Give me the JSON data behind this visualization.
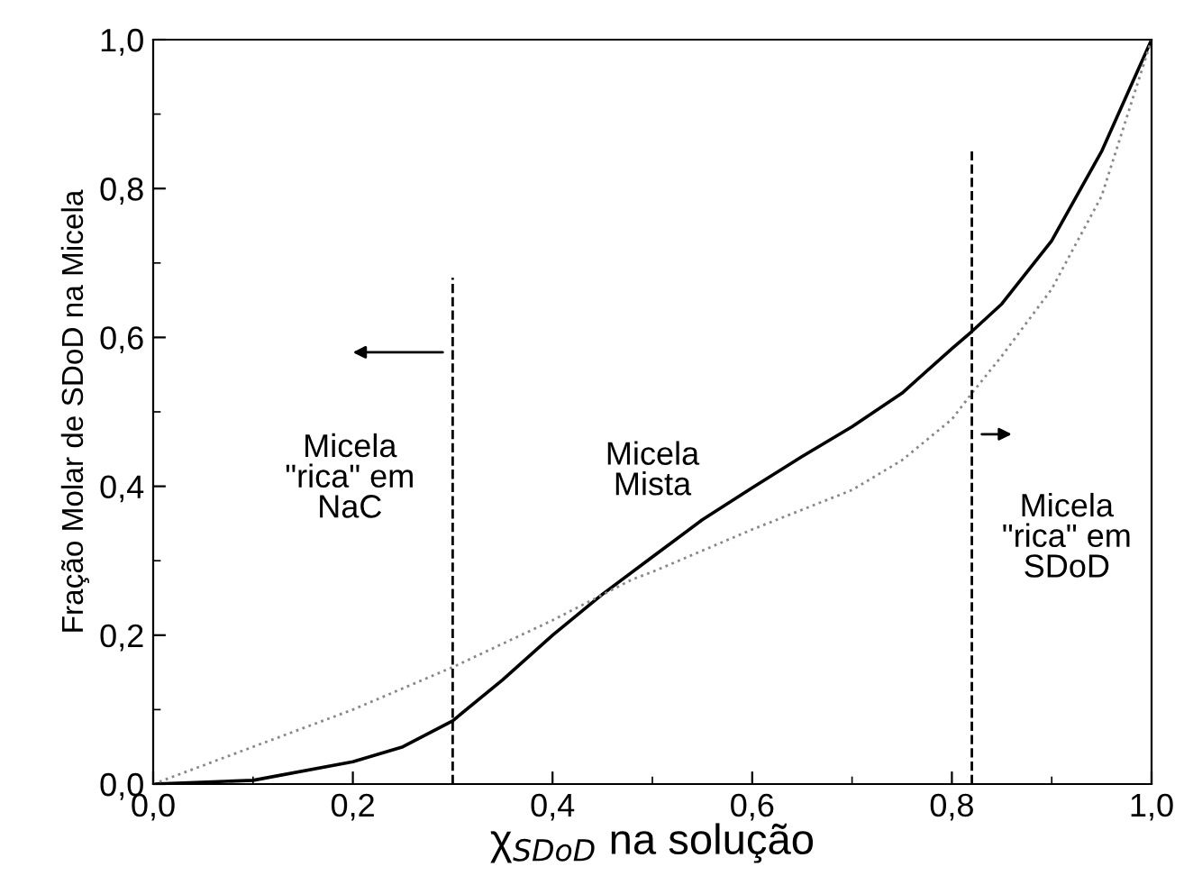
{
  "chart_data": {
    "type": "line",
    "xlabel": "χ$_{SDoD}$ na solução",
    "ylabel": "Fração Molar de SDoD na Micela",
    "xlim": [
      0,
      1
    ],
    "ylim": [
      0,
      1
    ],
    "xticks": [
      {
        "value": 0,
        "label": "0,0"
      },
      {
        "value": 0.2,
        "label": "0,2"
      },
      {
        "value": 0.4,
        "label": "0,4"
      },
      {
        "value": 0.6,
        "label": "0,6"
      },
      {
        "value": 0.8,
        "label": "0,8"
      },
      {
        "value": 1,
        "label": "1,0"
      }
    ],
    "yticks": [
      {
        "value": 0,
        "label": "0,0"
      },
      {
        "value": 0.2,
        "label": "0,2"
      },
      {
        "value": 0.4,
        "label": "0,4"
      },
      {
        "value": 0.6,
        "label": "0,6"
      },
      {
        "value": 0.8,
        "label": "0,8"
      },
      {
        "value": 1,
        "label": "1,0"
      }
    ],
    "grid": false,
    "legend": false,
    "marker": "none",
    "series": [
      {
        "color": "#000000",
        "line_style": "solid",
        "x": [
          0,
          0.1,
          0.2,
          0.25,
          0.3,
          0.35,
          0.4,
          0.45,
          0.5,
          0.55,
          0.6,
          0.65,
          0.7,
          0.75,
          0.8,
          0.82,
          0.85,
          0.9,
          0.95,
          1.0
        ],
        "values": [
          0,
          0.005,
          0.03,
          0.05,
          0.085,
          0.14,
          0.2,
          0.255,
          0.305,
          0.355,
          0.398,
          0.44,
          0.48,
          0.525,
          0.585,
          0.608,
          0.645,
          0.73,
          0.85,
          1.0
        ]
      },
      {
        "color": "#888888",
        "line_style": "dotted",
        "x": [
          0,
          0.1,
          0.2,
          0.3,
          0.4,
          0.48,
          0.5,
          0.6,
          0.7,
          0.75,
          0.8,
          0.82,
          0.85,
          0.9,
          0.95,
          1.0
        ],
        "values": [
          0,
          0.05,
          0.1,
          0.157,
          0.22,
          0.275,
          0.285,
          0.342,
          0.395,
          0.435,
          0.49,
          0.525,
          0.575,
          0.665,
          0.79,
          1.0
        ]
      }
    ],
    "ref_lines": [
      {
        "axis": "x",
        "value": 0.3,
        "line_style": "dashed",
        "color": "#000000"
      },
      {
        "axis": "x",
        "value": 0.82,
        "line_style": "dashed",
        "color": "#000000"
      }
    ],
    "annotations": [
      "Micela\n\"rica\" em\nNaC",
      "Micela\nMista",
      "Micela\n\"rica\" em\nSDoD"
    ]
  }
}
